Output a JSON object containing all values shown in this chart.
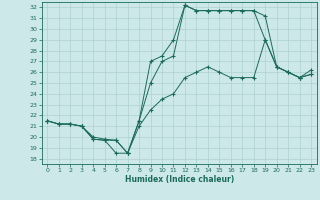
{
  "xlabel": "Humidex (Indice chaleur)",
  "xlim": [
    -0.5,
    23.5
  ],
  "ylim": [
    17.5,
    32.5
  ],
  "xticks": [
    0,
    1,
    2,
    3,
    4,
    5,
    6,
    7,
    8,
    9,
    10,
    11,
    12,
    13,
    14,
    15,
    16,
    17,
    18,
    19,
    20,
    21,
    22,
    23
  ],
  "yticks": [
    18,
    19,
    20,
    21,
    22,
    23,
    24,
    25,
    26,
    27,
    28,
    29,
    30,
    31,
    32
  ],
  "bg_color": "#cde8e8",
  "line_color": "#1a6b5a",
  "grid_color": "#b0d0d0",
  "line1_x": [
    0,
    1,
    2,
    3,
    4,
    5,
    6,
    7,
    8,
    9,
    10,
    11,
    12,
    13,
    14,
    15,
    16,
    17,
    18,
    19,
    20,
    21,
    22,
    23
  ],
  "line1_y": [
    21.5,
    21.2,
    21.2,
    21.0,
    19.8,
    19.7,
    18.5,
    18.5,
    21.5,
    25.0,
    27.0,
    27.5,
    32.2,
    31.7,
    31.7,
    31.7,
    31.7,
    31.7,
    31.7,
    31.2,
    26.5,
    26.0,
    25.5,
    25.8
  ],
  "line2_x": [
    0,
    1,
    2,
    3,
    4,
    5,
    6,
    7,
    8,
    9,
    10,
    11,
    12,
    13,
    14,
    15,
    16,
    17,
    18,
    19,
    20,
    21,
    22,
    23
  ],
  "line2_y": [
    21.5,
    21.2,
    21.2,
    21.0,
    19.8,
    19.7,
    19.7,
    18.5,
    21.5,
    27.0,
    27.5,
    29.0,
    32.2,
    31.7,
    31.7,
    31.7,
    31.7,
    31.7,
    31.7,
    29.0,
    26.5,
    26.0,
    25.5,
    25.8
  ],
  "line3_x": [
    0,
    1,
    2,
    3,
    4,
    5,
    6,
    7,
    8,
    9,
    10,
    11,
    12,
    13,
    14,
    15,
    16,
    17,
    18,
    19,
    20,
    21,
    22,
    23
  ],
  "line3_y": [
    21.5,
    21.2,
    21.2,
    21.0,
    20.0,
    19.8,
    19.7,
    18.5,
    21.0,
    22.5,
    23.5,
    24.0,
    25.5,
    26.0,
    26.5,
    26.0,
    25.5,
    25.5,
    25.5,
    29.0,
    26.5,
    26.0,
    25.5,
    26.2
  ]
}
